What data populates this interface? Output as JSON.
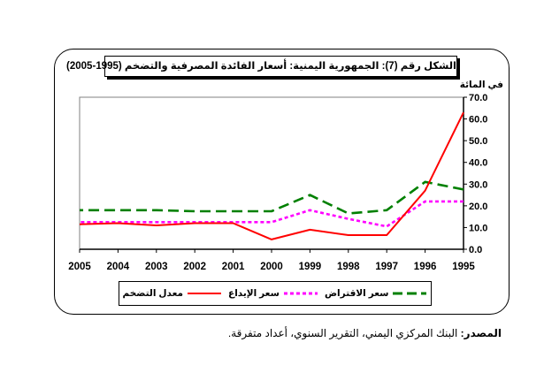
{
  "chart_data": {
    "type": "line",
    "title": "الشكل رقم (7): الجمهورية اليمنية: أسعار الفائدة المصرفية والتضخم (1995-2005)",
    "ylabel": "في المائة",
    "categories": [
      "1995",
      "1996",
      "1997",
      "1998",
      "1999",
      "2000",
      "2001",
      "2002",
      "2003",
      "2004",
      "2005"
    ],
    "y_ticks": [
      "0.0",
      "10.0",
      "20.0",
      "30.0",
      "40.0",
      "50.0",
      "60.0",
      "70.0"
    ],
    "ylim": [
      0,
      70
    ],
    "y_axis_side": "right",
    "x_axis_reversed": true,
    "grid": false,
    "legend_position": "bottom",
    "series": [
      {
        "name": "سعر الاقتراض",
        "color": "#008000",
        "dash": "long-dash",
        "values": [
          27.5,
          31,
          18,
          16.5,
          25,
          17.5,
          17.5,
          17.5,
          18,
          18,
          18
        ]
      },
      {
        "name": "سعر الإيداع",
        "color": "#ff00ff",
        "dash": "short-dash",
        "values": [
          22,
          22,
          10.5,
          14,
          18,
          12.5,
          12.5,
          12.5,
          12.5,
          12.5,
          12.5
        ]
      },
      {
        "name": "معدل التضخم",
        "color": "#ff0000",
        "dash": "solid",
        "values": [
          63,
          27,
          6.5,
          6.5,
          9,
          4.5,
          12,
          12,
          11,
          12,
          11.5
        ]
      }
    ]
  },
  "source": {
    "label": "المصدر:",
    "text": "البنك المركزي اليمني، التقرير السنوي، أعداد متفرقة."
  }
}
